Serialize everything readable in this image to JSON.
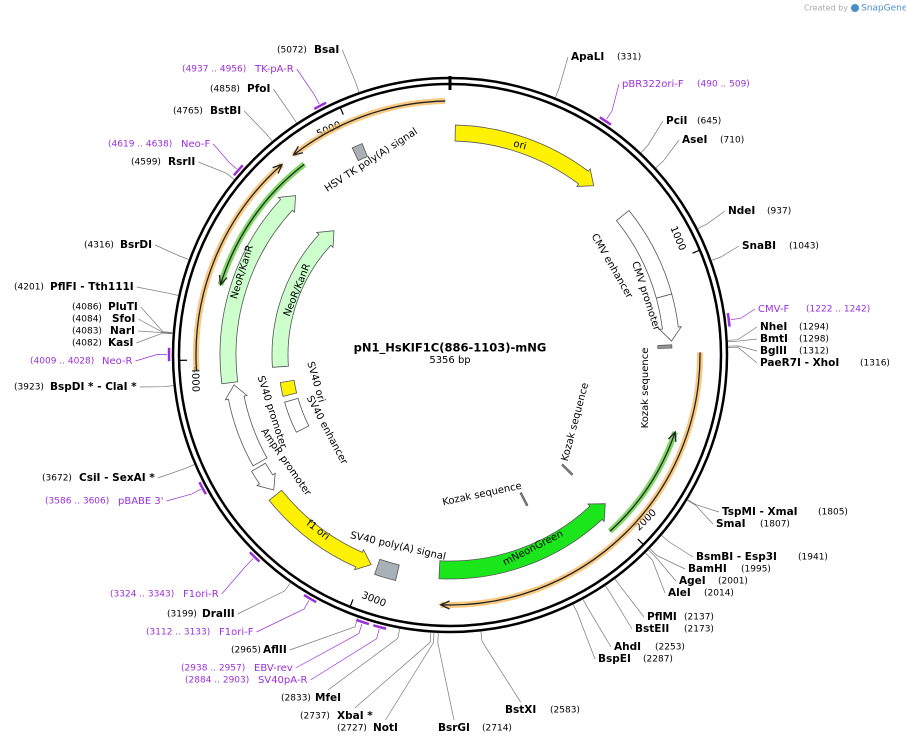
{
  "credit": {
    "prefix": "Created by",
    "brand": "SnapGene"
  },
  "title": "pN1_HsKIF1C(886-1103)-mNG",
  "length": {
    "value": 5356,
    "label": "5356 bp"
  },
  "ruler": [
    1000,
    2000,
    3000,
    4000,
    5000
  ],
  "sites": [
    {
      "name": "BsaI",
      "position": {
        "value": 5072,
        "label": "(5072)"
      }
    },
    {
      "name": "PfoI",
      "position": {
        "value": 4858,
        "label": "(4858)"
      }
    },
    {
      "name": "BstBI",
      "position": {
        "value": 4765,
        "label": "(4765)"
      }
    },
    {
      "name": "RsrII",
      "position": {
        "value": 4599,
        "label": "(4599)"
      }
    },
    {
      "name": "BsrDI",
      "position": {
        "value": 4316,
        "label": "(4316)"
      }
    },
    {
      "name": "PflFI  - Tth111I",
      "position": {
        "value": 4201,
        "label": "(4201)"
      }
    },
    {
      "name": "PluTI",
      "position": {
        "value": 4086,
        "label": "(4086)"
      }
    },
    {
      "name": "SfoI",
      "position": {
        "value": 4084,
        "label": "(4084)"
      }
    },
    {
      "name": "NarI",
      "position": {
        "value": 4083,
        "label": "(4083)"
      }
    },
    {
      "name": "KasI",
      "position": {
        "value": 4082,
        "label": "(4082)"
      }
    },
    {
      "name": "BspDI *  - ClaI *",
      "position": {
        "value": 3923,
        "label": "(3923)"
      }
    },
    {
      "name": "CsiI  - SexAI *",
      "position": {
        "value": 3672,
        "label": "(3672)"
      }
    },
    {
      "name": "DraIII",
      "position": {
        "value": 3199,
        "label": "(3199)"
      }
    },
    {
      "name": "AflII",
      "position": {
        "value": 2965,
        "label": "(2965)"
      }
    },
    {
      "name": "MfeI",
      "position": {
        "value": 2833,
        "label": "(2833)"
      }
    },
    {
      "name": "XbaI *",
      "position": {
        "value": 2737,
        "label": "(2737)"
      }
    },
    {
      "name": "NotI",
      "position": {
        "value": 2727,
        "label": "(2727)"
      }
    },
    {
      "name": "BsrGI",
      "position": {
        "value": 2714,
        "label": "(2714)"
      }
    },
    {
      "name": "BstXI",
      "position": {
        "value": 2583,
        "label": "(2583)"
      }
    },
    {
      "name": "BspEI",
      "position": {
        "value": 2287,
        "label": "(2287)"
      }
    },
    {
      "name": "AhdI",
      "position": {
        "value": 2253,
        "label": "(2253)"
      }
    },
    {
      "name": "BstEII",
      "position": {
        "value": 2173,
        "label": "(2173)"
      }
    },
    {
      "name": "PflMI",
      "position": {
        "value": 2137,
        "label": "(2137)"
      }
    },
    {
      "name": "AleI",
      "position": {
        "value": 2014,
        "label": "(2014)"
      }
    },
    {
      "name": "AgeI",
      "position": {
        "value": 2001,
        "label": "(2001)"
      }
    },
    {
      "name": "BamHI",
      "position": {
        "value": 1995,
        "label": "(1995)"
      }
    },
    {
      "name": "BsmBI  - Esp3I",
      "position": {
        "value": 1941,
        "label": "(1941)"
      }
    },
    {
      "name": "SmaI",
      "position": {
        "value": 1807,
        "label": "(1807)"
      }
    },
    {
      "name": "TspMI  - XmaI",
      "position": {
        "value": 1805,
        "label": "(1805)"
      }
    },
    {
      "name": "PaeR7I  - XhoI",
      "position": {
        "value": 1316,
        "label": "(1316)"
      }
    },
    {
      "name": "BglII",
      "position": {
        "value": 1312,
        "label": "(1312)"
      }
    },
    {
      "name": "BmtI",
      "position": {
        "value": 1298,
        "label": "(1298)"
      }
    },
    {
      "name": "NheI",
      "position": {
        "value": 1294,
        "label": "(1294)"
      }
    },
    {
      "name": "SnaBI",
      "position": {
        "value": 1043,
        "label": "(1043)"
      }
    },
    {
      "name": "NdeI",
      "position": {
        "value": 937,
        "label": "(937)"
      }
    },
    {
      "name": "AseI",
      "position": {
        "value": 710,
        "label": "(710)"
      }
    },
    {
      "name": "PciI",
      "position": {
        "value": 645,
        "label": "(645)"
      }
    },
    {
      "name": "ApaLI",
      "position": {
        "value": 331,
        "label": "(331)"
      }
    }
  ],
  "primers": [
    {
      "name": "pBR322ori-F",
      "start": 490,
      "end": 509,
      "range": "(490 .. 509)"
    },
    {
      "name": "CMV-F",
      "start": 1222,
      "end": 1242,
      "range": "(1222 .. 1242)"
    },
    {
      "name": "TK-pA-R",
      "start": 4937,
      "end": 4956,
      "range": "(4937 .. 4956)"
    },
    {
      "name": "Neo-F",
      "start": 4619,
      "end": 4638,
      "range": "(4619 .. 4638)"
    },
    {
      "name": "Neo-R",
      "start": 4009,
      "end": 4028,
      "range": "(4009 .. 4028)"
    },
    {
      "name": "pBABE 3'",
      "start": 3586,
      "end": 3606,
      "range": "(3586 .. 3606)"
    },
    {
      "name": "F1ori-R",
      "start": 3324,
      "end": 3343,
      "range": "(3324 .. 3343)"
    },
    {
      "name": "F1ori-F",
      "start": 3112,
      "end": 3133,
      "range": "(3112 .. 3133)"
    },
    {
      "name": "EBV-rev",
      "start": 2938,
      "end": 2957,
      "range": "(2938 .. 2957)"
    },
    {
      "name": "SV40pA-R",
      "start": 2884,
      "end": 2903,
      "range": "(2884 .. 2903)"
    }
  ],
  "features": [
    {
      "name": "ori",
      "start": 20,
      "end": 600,
      "direction": 1,
      "color": "#fff200"
    },
    {
      "name": "CMV enhancer",
      "start": 760,
      "end": 1110,
      "direction": 0,
      "color": "#ffffff"
    },
    {
      "name": "CMV promoter",
      "start": 1110,
      "end": 1285,
      "direction": 1,
      "color": "#ffffff"
    },
    {
      "name": "Kozak sequence",
      "start": 1300,
      "end": 1312,
      "direction": 0,
      "color": "#999999"
    },
    {
      "name": "mNeonGreen",
      "start": 1990,
      "end": 2720,
      "direction": -1,
      "color": "#1be51b"
    },
    {
      "name": "Kozak sequence",
      "start": 1995,
      "end": 2003,
      "direction": 0,
      "color": "#999999"
    },
    {
      "name": "Kozak sequence",
      "start": 2270,
      "end": 2278,
      "direction": 0,
      "color": "#999999"
    },
    {
      "name": "SV40 poly(A) signal",
      "start": 2880,
      "end": 2960,
      "direction": 0,
      "color": "#a8b0b8"
    },
    {
      "name": "f1 ori",
      "start": 2985,
      "end": 3440,
      "direction": -1,
      "color": "#fff200"
    },
    {
      "name": "AmpR promoter",
      "start": 3460,
      "end": 3565,
      "direction": -1,
      "color": "#ffffff"
    },
    {
      "name": "SV40 promoter",
      "start": 3580,
      "end": 3900,
      "direction": 1,
      "color": "#ffffff"
    },
    {
      "name": "SV40 enhancer",
      "start": 3620,
      "end": 3780,
      "direction": 0,
      "color": "#ffffff"
    },
    {
      "name": "SV40 ori",
      "start": 3810,
      "end": 3880,
      "direction": 0,
      "color": "#fff200"
    },
    {
      "name": "NeoR/KanR",
      "start": 3958,
      "end": 4716,
      "direction": 1,
      "color": "#ccffcc"
    },
    {
      "name": "NeoR/KanR",
      "start": 3910,
      "end": 4700,
      "direction": 1,
      "color": "#ccffcc"
    },
    {
      "name": "HSV TK poly(A) signal",
      "start": 4980,
      "end": 5020,
      "direction": 0,
      "color": "#a8b0b8"
    }
  ],
  "orfs": [
    {
      "start": 1330,
      "end": 2710,
      "direction": 1,
      "color": "#f5b85a"
    },
    {
      "start": 1620,
      "end": 2050,
      "direction": -1,
      "color": "#55cc33"
    },
    {
      "start": 3965,
      "end": 4740,
      "direction": 1,
      "color": "#f5b85a"
    },
    {
      "start": 4270,
      "end": 4800,
      "direction": -1,
      "color": "#55cc33"
    },
    {
      "start": 4790,
      "end": 5340,
      "direction": -1,
      "color": "#f5b85a"
    }
  ]
}
